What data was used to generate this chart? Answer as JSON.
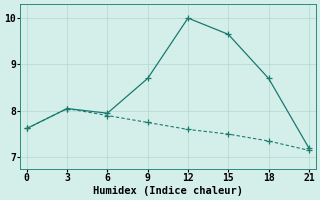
{
  "line1_x": [
    0,
    3,
    6,
    9,
    12,
    15,
    18,
    21
  ],
  "line1_y": [
    7.62,
    8.05,
    7.95,
    8.7,
    10.0,
    9.65,
    8.7,
    7.2
  ],
  "line2_x": [
    0,
    3,
    6,
    9,
    12,
    15,
    18,
    21
  ],
  "line2_y": [
    7.62,
    8.05,
    7.9,
    7.75,
    7.6,
    7.5,
    7.35,
    7.15
  ],
  "line_color": "#1a7a6e",
  "bg_color": "#d4eeea",
  "grid_color": "#b8dbd6",
  "xlabel": "Humidex (Indice chaleur)",
  "xlim": [
    -0.5,
    21.5
  ],
  "ylim": [
    6.75,
    10.3
  ],
  "xticks": [
    0,
    3,
    6,
    9,
    12,
    15,
    18,
    21
  ],
  "yticks": [
    7,
    8,
    9,
    10
  ],
  "xlabel_fontsize": 7.5,
  "tick_fontsize": 7.0
}
